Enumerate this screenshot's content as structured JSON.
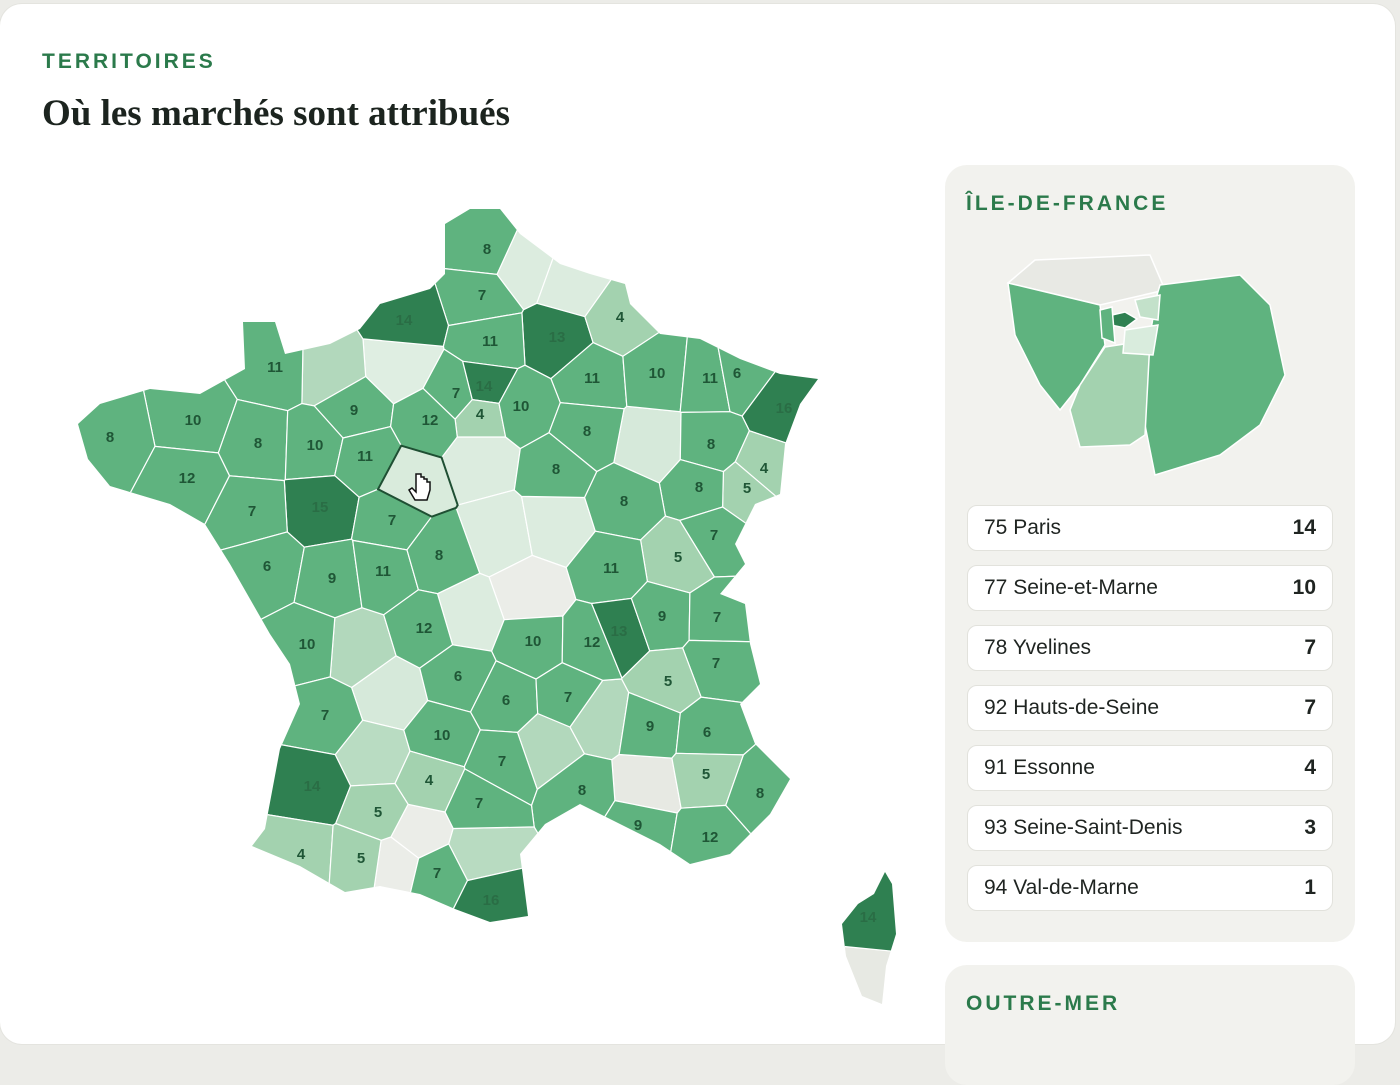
{
  "header": {
    "eyebrow": "TERRITOIRES",
    "title": "Où les marchés sont attribués"
  },
  "france_map": {
    "values": [
      8,
      7,
      14,
      13,
      4,
      11,
      11,
      11,
      10,
      11,
      6,
      16,
      7,
      14,
      4,
      10,
      9,
      12,
      10,
      8,
      8,
      10,
      11,
      8,
      8,
      4,
      12,
      8,
      5,
      8,
      15,
      7,
      7,
      8,
      7,
      6,
      9,
      11,
      8,
      5,
      11,
      12,
      10,
      12,
      13,
      9,
      7,
      10,
      7,
      6,
      5,
      6,
      7,
      7,
      9,
      6,
      10,
      7,
      4,
      5,
      14,
      8,
      8,
      7,
      5,
      9,
      12,
      4,
      5,
      7,
      16,
      14
    ]
  },
  "idf": {
    "title": "ÎLE-DE-FRANCE",
    "departments": [
      {
        "name": "75 Paris",
        "value": 14
      },
      {
        "name": "77 Seine-et-Marne",
        "value": 10
      },
      {
        "name": "78 Yvelines",
        "value": 7
      },
      {
        "name": "92 Hauts-de-Seine",
        "value": 7
      },
      {
        "name": "91 Essonne",
        "value": 4
      },
      {
        "name": "93 Seine-Saint-Denis",
        "value": 3
      },
      {
        "name": "94 Val-de-Marne",
        "value": 1
      }
    ]
  },
  "outre_mer": {
    "title": "OUTRE-MER"
  }
}
